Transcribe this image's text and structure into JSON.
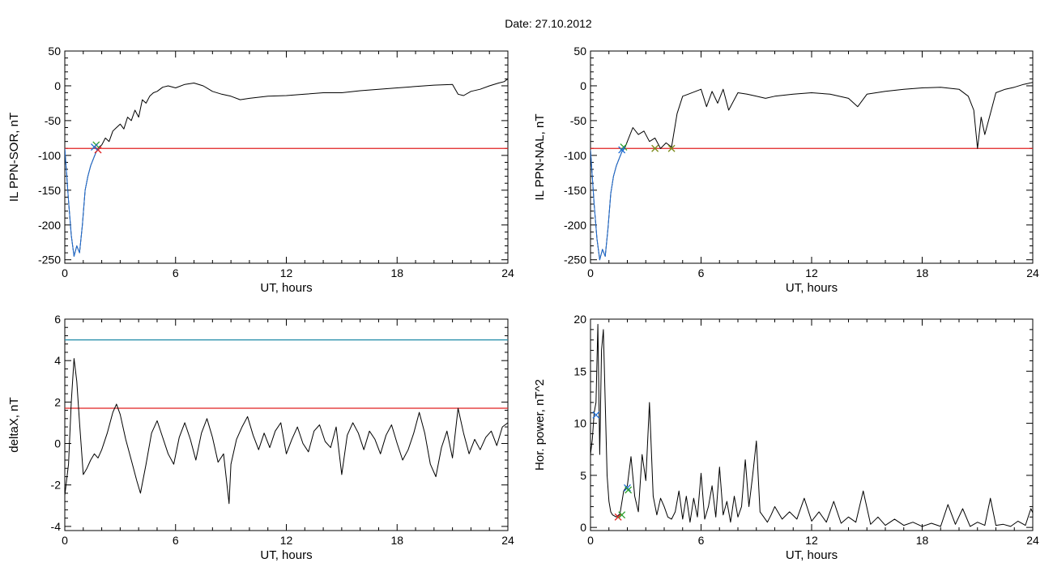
{
  "figure": {
    "title": "Date:  27.10.2012"
  },
  "chart_data": [
    {
      "type": "line",
      "id": "il-ppn-sor",
      "xlabel": "UT, hours",
      "ylabel": "IL PPN-SOR, nT",
      "xlim": [
        0,
        24
      ],
      "ylim": [
        -255,
        50
      ],
      "xticks": [
        0,
        6,
        12,
        18,
        24
      ],
      "yticks": [
        -250,
        -200,
        -150,
        -100,
        -50,
        0,
        50
      ],
      "series": [
        {
          "color": "#000000",
          "x": [
            0,
            0.2,
            0.35,
            0.5,
            0.65,
            0.8,
            0.95,
            1.1,
            1.25,
            1.4,
            1.55,
            1.7,
            1.85,
            2.0,
            2.2,
            2.4,
            2.6,
            2.8,
            3.0,
            3.2,
            3.4,
            3.6,
            3.8,
            4.0,
            4.2,
            4.4,
            4.6,
            4.8,
            5.0,
            5.3,
            5.6,
            6.0,
            6.5,
            7.0,
            7.5,
            8.0,
            8.5,
            9.0,
            9.5,
            10.0,
            11.0,
            12.0,
            13.0,
            14.0,
            15.0,
            16.0,
            17.0,
            18.0,
            19.0,
            20.0,
            21.0,
            21.3,
            21.6,
            22.0,
            22.5,
            23.0,
            23.5,
            23.8,
            24.0
          ],
          "y": [
            -90,
            -165,
            -215,
            -245,
            -230,
            -240,
            -200,
            -150,
            -130,
            -115,
            -105,
            -95,
            -88,
            -85,
            -75,
            -80,
            -65,
            -60,
            -55,
            -62,
            -45,
            -50,
            -35,
            -45,
            -20,
            -25,
            -15,
            -10,
            -8,
            -2,
            0,
            -3,
            2,
            4,
            0,
            -8,
            -12,
            -15,
            -20,
            -18,
            -15,
            -14,
            -12,
            -10,
            -10,
            -7,
            -5,
            -3,
            -1,
            1,
            2,
            -12,
            -14,
            -8,
            -5,
            0,
            4,
            6,
            10
          ]
        },
        {
          "color": "#1f6fd8",
          "x": [
            0,
            0.2,
            0.35,
            0.5,
            0.65,
            0.8,
            0.95,
            1.1,
            1.25,
            1.4,
            1.55,
            1.7,
            1.85
          ],
          "y": [
            -90,
            -165,
            -215,
            -245,
            -230,
            -240,
            -200,
            -150,
            -130,
            -115,
            -105,
            -95,
            -88
          ]
        }
      ],
      "hlines": [
        {
          "y": -90,
          "color": "#e02020"
        }
      ],
      "markers": [
        {
          "x": 1.7,
          "y": -85,
          "color": "#2aa02a",
          "symbol": "x"
        },
        {
          "x": 1.8,
          "y": -92,
          "color": "#e02020",
          "symbol": "x"
        },
        {
          "x": 1.6,
          "y": -88,
          "color": "#1f6fd8",
          "symbol": "x"
        }
      ]
    },
    {
      "type": "line",
      "id": "il-ppn-nal",
      "xlabel": "UT, hours",
      "ylabel": "IL PPN-NAL, nT",
      "xlim": [
        0,
        24
      ],
      "ylim": [
        -255,
        50
      ],
      "xticks": [
        0,
        6,
        12,
        18,
        24
      ],
      "yticks": [
        -250,
        -200,
        -150,
        -100,
        -50,
        0,
        50
      ],
      "series": [
        {
          "color": "#000000",
          "x": [
            0,
            0.2,
            0.35,
            0.5,
            0.65,
            0.8,
            0.95,
            1.1,
            1.25,
            1.4,
            1.55,
            1.7,
            1.85,
            2.0,
            2.3,
            2.6,
            2.9,
            3.2,
            3.5,
            3.8,
            4.1,
            4.4,
            4.7,
            5.0,
            5.3,
            5.7,
            6.0,
            6.3,
            6.6,
            6.9,
            7.2,
            7.5,
            8.0,
            8.5,
            9.0,
            9.5,
            10.0,
            11.0,
            12.0,
            13.0,
            14.0,
            14.5,
            15.0,
            16.0,
            17.0,
            18.0,
            19.0,
            20.0,
            20.5,
            20.8,
            21.0,
            21.2,
            21.4,
            21.7,
            22.0,
            22.5,
            23.0,
            23.5,
            24.0
          ],
          "y": [
            -92,
            -170,
            -220,
            -250,
            -235,
            -245,
            -205,
            -155,
            -130,
            -115,
            -105,
            -95,
            -90,
            -80,
            -60,
            -70,
            -65,
            -80,
            -75,
            -90,
            -82,
            -88,
            -40,
            -15,
            -12,
            -8,
            -5,
            -30,
            -8,
            -25,
            -5,
            -35,
            -10,
            -12,
            -15,
            -18,
            -15,
            -12,
            -10,
            -12,
            -18,
            -30,
            -12,
            -8,
            -5,
            -3,
            -2,
            -5,
            -15,
            -35,
            -90,
            -45,
            -70,
            -40,
            -10,
            -5,
            -2,
            2,
            5
          ]
        },
        {
          "color": "#1f6fd8",
          "x": [
            0,
            0.2,
            0.35,
            0.5,
            0.65,
            0.8,
            0.95,
            1.1,
            1.25,
            1.4,
            1.55,
            1.7,
            1.85
          ],
          "y": [
            -92,
            -170,
            -220,
            -250,
            -235,
            -245,
            -205,
            -155,
            -130,
            -115,
            -105,
            -95,
            -90
          ]
        }
      ],
      "hlines": [
        {
          "y": -90,
          "color": "#e02020"
        }
      ],
      "markers": [
        {
          "x": 1.8,
          "y": -88,
          "color": "#2aa02a",
          "symbol": "x"
        },
        {
          "x": 3.5,
          "y": -90,
          "color": "#7a8a1a",
          "symbol": "x"
        },
        {
          "x": 4.4,
          "y": -90,
          "color": "#7a8a1a",
          "symbol": "x"
        },
        {
          "x": 1.7,
          "y": -92,
          "color": "#1f6fd8",
          "symbol": "x"
        }
      ]
    },
    {
      "type": "line",
      "id": "deltax",
      "xlabel": "UT, hours",
      "ylabel": "deltaX, nT",
      "xlim": [
        0,
        24
      ],
      "ylim": [
        -4.2,
        6
      ],
      "xticks": [
        0,
        6,
        12,
        18,
        24
      ],
      "yticks": [
        -4,
        -2,
        0,
        2,
        4,
        6
      ],
      "series": [
        {
          "color": "#000000",
          "x": [
            0,
            0.2,
            0.35,
            0.5,
            0.65,
            0.8,
            1.0,
            1.2,
            1.4,
            1.6,
            1.8,
            2.0,
            2.3,
            2.6,
            2.8,
            3.0,
            3.3,
            3.6,
            3.9,
            4.1,
            4.4,
            4.7,
            5.0,
            5.3,
            5.6,
            5.9,
            6.2,
            6.5,
            6.8,
            7.1,
            7.4,
            7.7,
            8.0,
            8.3,
            8.6,
            8.9,
            9.0,
            9.3,
            9.6,
            9.9,
            10.2,
            10.5,
            10.8,
            11.1,
            11.4,
            11.7,
            12.0,
            12.3,
            12.6,
            12.9,
            13.2,
            13.5,
            13.8,
            14.1,
            14.4,
            14.7,
            15.0,
            15.3,
            15.6,
            15.9,
            16.2,
            16.5,
            16.8,
            17.1,
            17.4,
            17.7,
            18.0,
            18.3,
            18.6,
            18.9,
            19.2,
            19.5,
            19.8,
            20.1,
            20.4,
            20.7,
            21.0,
            21.3,
            21.6,
            21.9,
            22.2,
            22.5,
            22.8,
            23.1,
            23.4,
            23.7,
            24.0
          ],
          "y": [
            -2.5,
            -1.0,
            2.0,
            4.1,
            3.0,
            1.0,
            -1.5,
            -1.2,
            -0.8,
            -0.5,
            -0.7,
            -0.3,
            0.5,
            1.5,
            1.9,
            1.4,
            0.2,
            -0.8,
            -1.8,
            -2.4,
            -1.0,
            0.5,
            1.1,
            0.3,
            -0.5,
            -1.0,
            0.3,
            1.0,
            0.2,
            -0.8,
            0.5,
            1.2,
            0.3,
            -0.9,
            -0.5,
            -2.9,
            -1.0,
            0.2,
            0.8,
            1.3,
            0.4,
            -0.3,
            0.5,
            -0.2,
            0.6,
            1.0,
            -0.5,
            0.2,
            0.8,
            0.0,
            -0.4,
            0.6,
            0.9,
            0.1,
            -0.2,
            0.8,
            -1.5,
            0.4,
            1.0,
            0.5,
            -0.3,
            0.6,
            0.2,
            -0.5,
            0.4,
            0.9,
            0.0,
            -0.8,
            -0.3,
            0.5,
            1.5,
            0.5,
            -1.0,
            -1.6,
            -0.2,
            0.6,
            -0.7,
            1.7,
            0.5,
            -0.5,
            0.2,
            -0.3,
            0.3,
            0.6,
            -0.1,
            0.8,
            1.0
          ]
        }
      ],
      "hlines": [
        {
          "y": 5.0,
          "color": "#1f8aa8"
        },
        {
          "y": 1.7,
          "color": "#e02020"
        }
      ],
      "markers": []
    },
    {
      "type": "line",
      "id": "hor-power",
      "xlabel": "UT, hours",
      "ylabel": "Hor. power, nT^2",
      "xlim": [
        0,
        24
      ],
      "ylim": [
        -0.3,
        20
      ],
      "xticks": [
        0,
        6,
        12,
        18,
        24
      ],
      "yticks": [
        0,
        5,
        10,
        15,
        20
      ],
      "series": [
        {
          "color": "#000000",
          "x": [
            0,
            0.1,
            0.2,
            0.3,
            0.4,
            0.5,
            0.6,
            0.7,
            0.8,
            0.9,
            1.0,
            1.1,
            1.2,
            1.4,
            1.6,
            1.8,
            2.0,
            2.2,
            2.4,
            2.6,
            2.8,
            3.0,
            3.2,
            3.4,
            3.6,
            3.8,
            4.0,
            4.2,
            4.4,
            4.6,
            4.8,
            5.0,
            5.2,
            5.4,
            5.6,
            5.8,
            6.0,
            6.2,
            6.4,
            6.6,
            6.8,
            7.0,
            7.2,
            7.4,
            7.6,
            7.8,
            8.0,
            8.2,
            8.4,
            8.6,
            8.8,
            9.0,
            9.2,
            9.4,
            9.6,
            9.8,
            10.0,
            10.4,
            10.8,
            11.2,
            11.6,
            12.0,
            12.4,
            12.8,
            13.2,
            13.6,
            14.0,
            14.4,
            14.8,
            15.2,
            15.6,
            16.0,
            16.5,
            17.0,
            17.5,
            18.0,
            18.5,
            19.0,
            19.4,
            19.8,
            20.2,
            20.6,
            21.0,
            21.4,
            21.7,
            22.0,
            22.4,
            22.8,
            23.2,
            23.6,
            23.9,
            24.0
          ],
          "y": [
            7,
            8.5,
            11,
            12,
            19.5,
            7,
            17,
            19,
            12,
            5,
            2.5,
            1.5,
            1.2,
            1.0,
            1.3,
            3.5,
            4.0,
            6.8,
            3.0,
            1.5,
            7.0,
            4.5,
            12.0,
            3.0,
            1.2,
            2.8,
            2.0,
            1.0,
            0.8,
            1.5,
            3.5,
            0.8,
            3.0,
            0.5,
            2.8,
            1.0,
            5.2,
            0.8,
            2.0,
            4.0,
            1.0,
            5.8,
            1.2,
            2.5,
            0.5,
            3.0,
            1.0,
            2.0,
            6.5,
            2.0,
            5.0,
            8.3,
            1.5,
            1.0,
            0.5,
            1.2,
            2.0,
            0.8,
            1.5,
            0.8,
            2.8,
            0.6,
            1.5,
            0.5,
            2.5,
            0.4,
            1.0,
            0.5,
            3.5,
            0.3,
            1.0,
            0.2,
            0.8,
            0.2,
            0.5,
            0.1,
            0.4,
            0.1,
            2.2,
            0.3,
            1.8,
            0.1,
            0.5,
            0.2,
            2.8,
            0.2,
            0.3,
            0.1,
            0.6,
            0.2,
            1.8,
            1.4
          ]
        }
      ],
      "hlines": [],
      "markers": [
        {
          "x": 0.3,
          "y": 10.8,
          "color": "#1f6fd8",
          "symbol": "x"
        },
        {
          "x": 1.5,
          "y": 1.0,
          "color": "#e02020",
          "symbol": "x"
        },
        {
          "x": 1.7,
          "y": 1.2,
          "color": "#2aa02a",
          "symbol": "x"
        },
        {
          "x": 2.0,
          "y": 3.8,
          "color": "#1f6fd8",
          "symbol": "x"
        },
        {
          "x": 2.05,
          "y": 3.6,
          "color": "#2aa02a",
          "symbol": "x"
        }
      ]
    }
  ]
}
